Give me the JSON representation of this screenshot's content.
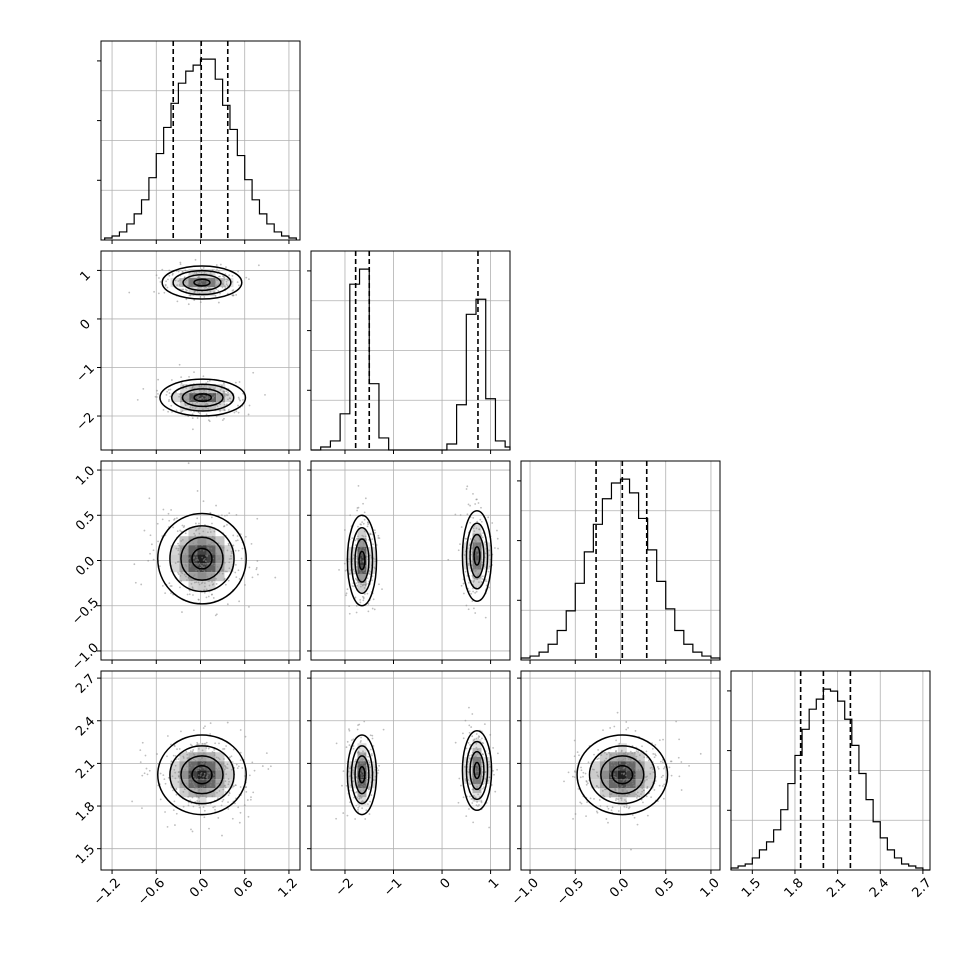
{
  "chart_data": {
    "type": "corner",
    "xlabel": "",
    "ylabel": "",
    "grid": true,
    "colors": {
      "line": "#000000",
      "grid": "#b0b0b0",
      "sample": "#888888"
    },
    "params": [
      {
        "range": [
          -1.35,
          1.35
        ],
        "ticks": [
          -1.2,
          -0.6,
          0.0,
          0.6,
          1.2
        ],
        "tick_labels": [
          "−1.2",
          "−0.6",
          "0.0",
          "0.6",
          "1.2"
        ],
        "hist_bins": [
          -1.3,
          -1.2,
          -1.1,
          -1.0,
          -0.9,
          -0.8,
          -0.7,
          -0.6,
          -0.5,
          -0.4,
          -0.3,
          -0.2,
          -0.1,
          0.0,
          0.1,
          0.2,
          0.3,
          0.4,
          0.5,
          0.6,
          0.7,
          0.8,
          0.9,
          1.0,
          1.1,
          1.2,
          1.3
        ],
        "hist_counts": [
          1,
          2,
          4,
          8,
          13,
          20,
          31,
          43,
          56,
          68,
          78,
          84,
          87,
          90,
          90,
          80,
          67,
          55,
          42,
          30,
          20,
          13,
          8,
          4,
          2,
          1
        ],
        "quantiles": [
          -0.37,
          0.01,
          0.37
        ]
      },
      {
        "range": [
          -2.7,
          1.4
        ],
        "ticks": [
          -2,
          -1,
          0,
          1
        ],
        "tick_labels": [
          "−2",
          "−1",
          "0",
          "1"
        ],
        "hist_bins": [
          -2.7,
          -2.5,
          -2.3,
          -2.1,
          -1.9,
          -1.7,
          -1.5,
          -1.3,
          -1.1,
          -0.9,
          -0.7,
          -0.5,
          -0.3,
          -0.1,
          0.1,
          0.3,
          0.5,
          0.7,
          0.9,
          1.1,
          1.3,
          1.4
        ],
        "hist_counts": [
          0,
          1,
          3,
          12,
          55,
          60,
          22,
          4,
          0,
          0,
          0,
          0,
          0,
          0,
          2,
          15,
          45,
          50,
          17,
          3,
          1
        ],
        "quantiles": [
          -1.78,
          -1.5,
          0.74
        ]
      },
      {
        "range": [
          -1.1,
          1.1
        ],
        "ticks": [
          -1.0,
          -0.5,
          0.0,
          0.5,
          1.0
        ],
        "tick_labels": [
          "−1.0",
          "−0.5",
          "0.0",
          "0.5",
          "1.0"
        ],
        "hist_bins": [
          -1.1,
          -1.0,
          -0.9,
          -0.8,
          -0.7,
          -0.6,
          -0.5,
          -0.4,
          -0.3,
          -0.2,
          -0.1,
          0.0,
          0.1,
          0.2,
          0.3,
          0.4,
          0.5,
          0.6,
          0.7,
          0.8,
          0.9,
          1.0,
          1.1
        ],
        "hist_counts": [
          1,
          2,
          4,
          8,
          15,
          25,
          39,
          55,
          69,
          82,
          90,
          92,
          85,
          72,
          56,
          40,
          26,
          15,
          8,
          4,
          2,
          1
        ],
        "quantiles": [
          -0.27,
          0.02,
          0.29
        ]
      },
      {
        "range": [
          1.35,
          2.75
        ],
        "ticks": [
          1.5,
          1.8,
          2.1,
          2.4,
          2.7
        ],
        "tick_labels": [
          "1.5",
          "1.8",
          "2.1",
          "2.4",
          "2.7"
        ],
        "hist_bins": [
          1.35,
          1.4,
          1.45,
          1.5,
          1.55,
          1.6,
          1.65,
          1.7,
          1.75,
          1.8,
          1.85,
          1.9,
          1.95,
          2.0,
          2.05,
          2.1,
          2.15,
          2.2,
          2.25,
          2.3,
          2.35,
          2.4,
          2.45,
          2.5,
          2.55,
          2.6,
          2.65,
          2.7,
          2.75
        ],
        "hist_counts": [
          1,
          2,
          3,
          6,
          10,
          14,
          20,
          30,
          43,
          57,
          70,
          80,
          85,
          90,
          89,
          84,
          75,
          62,
          48,
          35,
          24,
          16,
          10,
          6,
          3,
          2,
          1,
          0
        ],
        "quantiles": [
          1.84,
          2.0,
          2.19
        ]
      }
    ],
    "pairs": [
      {
        "row": 1,
        "col": 0,
        "blobs": [
          {
            "cx": 0.02,
            "cy": 0.75,
            "sx": 0.27,
            "sy": 0.17,
            "w": 0.45
          },
          {
            "cx": 0.03,
            "cy": -1.62,
            "sx": 0.29,
            "sy": 0.19,
            "w": 0.55
          }
        ]
      },
      {
        "row": 2,
        "col": 0,
        "blobs": [
          {
            "cx": 0.02,
            "cy": 0.02,
            "sx": 0.3,
            "sy": 0.25,
            "w": 1.0
          }
        ]
      },
      {
        "row": 2,
        "col": 1,
        "blobs": [
          {
            "cx": -1.65,
            "cy": 0.0,
            "sx": 0.15,
            "sy": 0.25,
            "w": 0.55
          },
          {
            "cx": 0.72,
            "cy": 0.05,
            "sx": 0.15,
            "sy": 0.25,
            "w": 0.45
          }
        ]
      },
      {
        "row": 3,
        "col": 0,
        "blobs": [
          {
            "cx": 0.02,
            "cy": 2.02,
            "sx": 0.3,
            "sy": 0.14,
            "w": 1.0
          }
        ]
      },
      {
        "row": 3,
        "col": 1,
        "blobs": [
          {
            "cx": -1.65,
            "cy": 2.02,
            "sx": 0.15,
            "sy": 0.14,
            "w": 0.55
          },
          {
            "cx": 0.72,
            "cy": 2.05,
            "sx": 0.15,
            "sy": 0.14,
            "w": 0.45
          }
        ]
      },
      {
        "row": 3,
        "col": 2,
        "blobs": [
          {
            "cx": 0.02,
            "cy": 2.02,
            "sx": 0.25,
            "sy": 0.14,
            "w": 1.0
          }
        ]
      }
    ]
  }
}
